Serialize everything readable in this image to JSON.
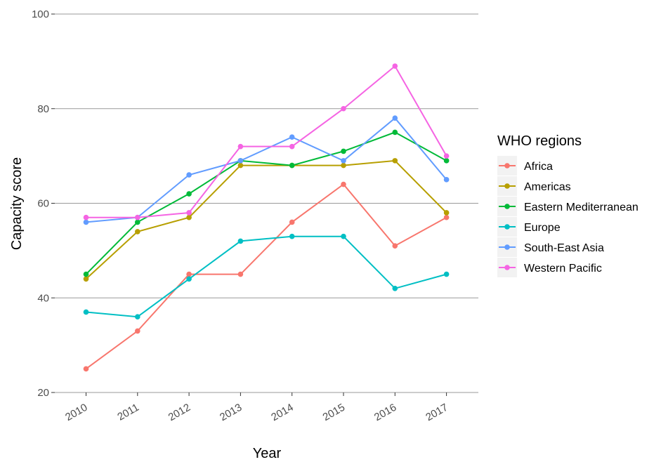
{
  "chart_data": {
    "type": "line",
    "xlabel": "Year",
    "ylabel": "Capacity score",
    "ylim": [
      20,
      100
    ],
    "yticks": [
      20,
      40,
      60,
      80,
      100
    ],
    "grid": "horizontal",
    "legend_title": "WHO regions",
    "legend_position": "right",
    "categories": [
      "2010",
      "2011",
      "2012",
      "2013",
      "2014",
      "2015",
      "2016",
      "2017"
    ],
    "series": [
      {
        "name": "Africa",
        "color": "#f8766d",
        "values": [
          25,
          33,
          45,
          45,
          56,
          64,
          51,
          57
        ]
      },
      {
        "name": "Americas",
        "color": "#b79f00",
        "values": [
          44,
          54,
          57,
          68,
          68,
          68,
          69,
          58
        ]
      },
      {
        "name": "Eastern Mediterranean",
        "color": "#00ba38",
        "values": [
          45,
          56,
          62,
          69,
          68,
          71,
          75,
          69
        ]
      },
      {
        "name": "Europe",
        "color": "#00bfc4",
        "values": [
          37,
          36,
          44,
          52,
          53,
          53,
          42,
          45
        ]
      },
      {
        "name": "South-East Asia",
        "color": "#619cff",
        "values": [
          56,
          57,
          66,
          69,
          74,
          69,
          78,
          65
        ]
      },
      {
        "name": "Western Pacific",
        "color": "#f564e3",
        "values": [
          57,
          57,
          58,
          72,
          72,
          80,
          89,
          70
        ]
      }
    ]
  }
}
